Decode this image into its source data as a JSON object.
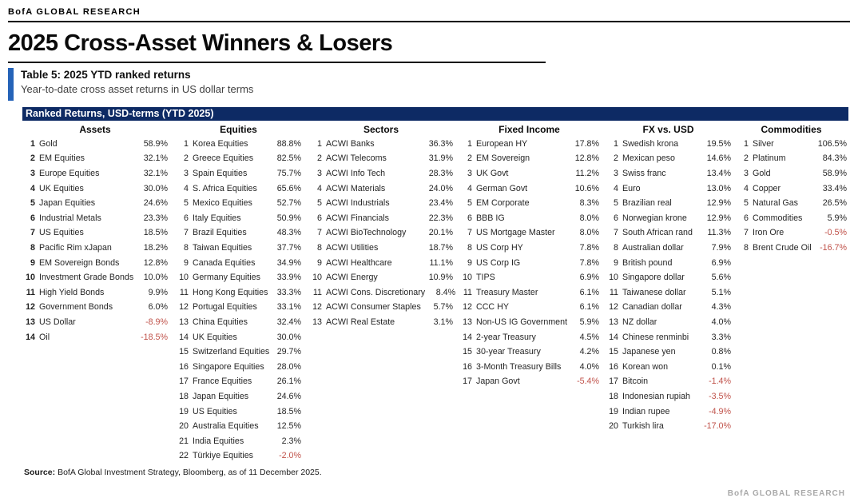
{
  "header": {
    "brand": "BofA GLOBAL RESEARCH",
    "title": "2025 Cross-Asset Winners & Losers"
  },
  "table_caption": {
    "title": "Table 5: 2025 YTD ranked returns",
    "subtitle": "Year-to-date cross asset returns in US dollar terms"
  },
  "band_title": "Ranked Returns, USD-terms (YTD 2025)",
  "colors": {
    "navy_band": "#0d2a64",
    "accent_blue": "#2563b8",
    "negative_red": "#c0524a"
  },
  "footer": {
    "source_label": "Source:",
    "source_text": "BofA Global Investment Strategy, Bloomberg, as of 11 December 2025."
  },
  "watermark": "BofA GLOBAL RESEARCH",
  "table": {
    "columns": [
      {
        "header": "Assets",
        "rows": [
          {
            "rank": "1",
            "name": "Gold",
            "value": "58.9%"
          },
          {
            "rank": "2",
            "name": "EM Equities",
            "value": "32.1%"
          },
          {
            "rank": "3",
            "name": "Europe Equities",
            "value": "32.1%"
          },
          {
            "rank": "4",
            "name": "UK Equities",
            "value": "30.0%"
          },
          {
            "rank": "5",
            "name": "Japan Equities",
            "value": "24.6%"
          },
          {
            "rank": "6",
            "name": "Industrial Metals",
            "value": "23.3%"
          },
          {
            "rank": "7",
            "name": "US Equities",
            "value": "18.5%"
          },
          {
            "rank": "8",
            "name": "Pacific Rim xJapan",
            "value": "18.2%"
          },
          {
            "rank": "9",
            "name": "EM Sovereign Bonds",
            "value": "12.8%"
          },
          {
            "rank": "10",
            "name": "Investment Grade Bonds",
            "value": "10.0%"
          },
          {
            "rank": "11",
            "name": "High Yield Bonds",
            "value": "9.9%"
          },
          {
            "rank": "12",
            "name": "Government Bonds",
            "value": "6.0%"
          },
          {
            "rank": "13",
            "name": "US Dollar",
            "value": "-8.9%"
          },
          {
            "rank": "14",
            "name": "Oil",
            "value": "-18.5%"
          }
        ]
      },
      {
        "header": "Equities",
        "rows": [
          {
            "rank": "1",
            "name": "Korea Equities",
            "value": "88.8%"
          },
          {
            "rank": "2",
            "name": "Greece Equities",
            "value": "82.5%"
          },
          {
            "rank": "3",
            "name": "Spain Equities",
            "value": "75.7%"
          },
          {
            "rank": "4",
            "name": "S. Africa Equities",
            "value": "65.6%"
          },
          {
            "rank": "5",
            "name": "Mexico Equities",
            "value": "52.7%"
          },
          {
            "rank": "6",
            "name": "Italy Equities",
            "value": "50.9%"
          },
          {
            "rank": "7",
            "name": "Brazil Equities",
            "value": "48.3%"
          },
          {
            "rank": "8",
            "name": "Taiwan Equities",
            "value": "37.7%"
          },
          {
            "rank": "9",
            "name": "Canada Equities",
            "value": "34.9%"
          },
          {
            "rank": "10",
            "name": "Germany Equities",
            "value": "33.9%"
          },
          {
            "rank": "11",
            "name": "Hong Kong Equities",
            "value": "33.3%"
          },
          {
            "rank": "12",
            "name": "Portugal Equities",
            "value": "33.1%"
          },
          {
            "rank": "13",
            "name": "China Equities",
            "value": "32.4%"
          },
          {
            "rank": "14",
            "name": "UK Equities",
            "value": "30.0%"
          },
          {
            "rank": "15",
            "name": "Switzerland Equities",
            "value": "29.7%"
          },
          {
            "rank": "16",
            "name": "Singapore Equities",
            "value": "28.0%"
          },
          {
            "rank": "17",
            "name": "France Equities",
            "value": "26.1%"
          },
          {
            "rank": "18",
            "name": "Japan Equities",
            "value": "24.6%"
          },
          {
            "rank": "19",
            "name": "US Equities",
            "value": "18.5%"
          },
          {
            "rank": "20",
            "name": "Australia Equities",
            "value": "12.5%"
          },
          {
            "rank": "21",
            "name": "India Equities",
            "value": "2.3%"
          },
          {
            "rank": "22",
            "name": "Türkiye Equities",
            "value": "-2.0%"
          }
        ]
      },
      {
        "header": "Sectors",
        "rows": [
          {
            "rank": "1",
            "name": "ACWI Banks",
            "value": "36.3%"
          },
          {
            "rank": "2",
            "name": "ACWI Telecoms",
            "value": "31.9%"
          },
          {
            "rank": "3",
            "name": "ACWI Info Tech",
            "value": "28.3%"
          },
          {
            "rank": "4",
            "name": "ACWI Materials",
            "value": "24.0%"
          },
          {
            "rank": "5",
            "name": "ACWI Industrials",
            "value": "23.4%"
          },
          {
            "rank": "6",
            "name": "ACWI Financials",
            "value": "22.3%"
          },
          {
            "rank": "7",
            "name": "ACWI BioTechnology",
            "value": "20.1%"
          },
          {
            "rank": "8",
            "name": "ACWI Utilities",
            "value": "18.7%"
          },
          {
            "rank": "9",
            "name": "ACWI Healthcare",
            "value": "11.1%"
          },
          {
            "rank": "10",
            "name": "ACWI Energy",
            "value": "10.9%"
          },
          {
            "rank": "11",
            "name": "ACWI Cons. Discretionary",
            "value": "8.4%"
          },
          {
            "rank": "12",
            "name": "ACWI Consumer Staples",
            "value": "5.7%"
          },
          {
            "rank": "13",
            "name": "ACWI Real Estate",
            "value": "3.1%"
          }
        ]
      },
      {
        "header": "Fixed Income",
        "rows": [
          {
            "rank": "1",
            "name": "European HY",
            "value": "17.8%"
          },
          {
            "rank": "2",
            "name": "EM Sovereign",
            "value": "12.8%"
          },
          {
            "rank": "3",
            "name": "UK Govt",
            "value": "11.2%"
          },
          {
            "rank": "4",
            "name": "German Govt",
            "value": "10.6%"
          },
          {
            "rank": "5",
            "name": "EM Corporate",
            "value": "8.3%"
          },
          {
            "rank": "6",
            "name": "BBB IG",
            "value": "8.0%"
          },
          {
            "rank": "7",
            "name": "US Mortgage Master",
            "value": "8.0%"
          },
          {
            "rank": "8",
            "name": "US Corp HY",
            "value": "7.8%"
          },
          {
            "rank": "9",
            "name": "US Corp IG",
            "value": "7.8%"
          },
          {
            "rank": "10",
            "name": "TIPS",
            "value": "6.9%"
          },
          {
            "rank": "11",
            "name": "Treasury Master",
            "value": "6.1%"
          },
          {
            "rank": "12",
            "name": "CCC HY",
            "value": "6.1%"
          },
          {
            "rank": "13",
            "name": "Non-US IG Government",
            "value": "5.9%"
          },
          {
            "rank": "14",
            "name": "2-year Treasury",
            "value": "4.5%"
          },
          {
            "rank": "15",
            "name": "30-year Treasury",
            "value": "4.2%"
          },
          {
            "rank": "16",
            "name": "3-Month Treasury Bills",
            "value": "4.0%"
          },
          {
            "rank": "17",
            "name": "Japan Govt",
            "value": "-5.4%"
          }
        ]
      },
      {
        "header": "FX vs. USD",
        "rows": [
          {
            "rank": "1",
            "name": "Swedish krona",
            "value": "19.5%"
          },
          {
            "rank": "2",
            "name": "Mexican peso",
            "value": "14.6%"
          },
          {
            "rank": "3",
            "name": "Swiss franc",
            "value": "13.4%"
          },
          {
            "rank": "4",
            "name": "Euro",
            "value": "13.0%"
          },
          {
            "rank": "5",
            "name": "Brazilian real",
            "value": "12.9%"
          },
          {
            "rank": "6",
            "name": "Norwegian krone",
            "value": "12.9%"
          },
          {
            "rank": "7",
            "name": "South African rand",
            "value": "11.3%"
          },
          {
            "rank": "8",
            "name": "Australian dollar",
            "value": "7.9%"
          },
          {
            "rank": "9",
            "name": "British pound",
            "value": "6.9%"
          },
          {
            "rank": "10",
            "name": "Singapore dollar",
            "value": "5.6%"
          },
          {
            "rank": "11",
            "name": "Taiwanese dollar",
            "value": "5.1%"
          },
          {
            "rank": "12",
            "name": "Canadian dollar",
            "value": "4.3%"
          },
          {
            "rank": "13",
            "name": "NZ dollar",
            "value": "4.0%"
          },
          {
            "rank": "14",
            "name": "Chinese renminbi",
            "value": "3.3%"
          },
          {
            "rank": "15",
            "name": "Japanese yen",
            "value": "0.8%"
          },
          {
            "rank": "16",
            "name": "Korean won",
            "value": "0.1%"
          },
          {
            "rank": "17",
            "name": "Bitcoin",
            "value": "-1.4%"
          },
          {
            "rank": "18",
            "name": "Indonesian rupiah",
            "value": "-3.5%"
          },
          {
            "rank": "19",
            "name": "Indian rupee",
            "value": "-4.9%"
          },
          {
            "rank": "20",
            "name": "Turkish lira",
            "value": "-17.0%"
          }
        ]
      },
      {
        "header": "Commodities",
        "rows": [
          {
            "rank": "1",
            "name": "Silver",
            "value": "106.5%"
          },
          {
            "rank": "2",
            "name": "Platinum",
            "value": "84.3%"
          },
          {
            "rank": "3",
            "name": "Gold",
            "value": "58.9%"
          },
          {
            "rank": "4",
            "name": "Copper",
            "value": "33.4%"
          },
          {
            "rank": "5",
            "name": "Natural Gas",
            "value": "26.5%"
          },
          {
            "rank": "6",
            "name": "Commodities",
            "value": "5.9%"
          },
          {
            "rank": "7",
            "name": "Iron Ore",
            "value": "-0.5%"
          },
          {
            "rank": "8",
            "name": "Brent Crude Oil",
            "value": "-16.7%"
          }
        ]
      }
    ]
  }
}
